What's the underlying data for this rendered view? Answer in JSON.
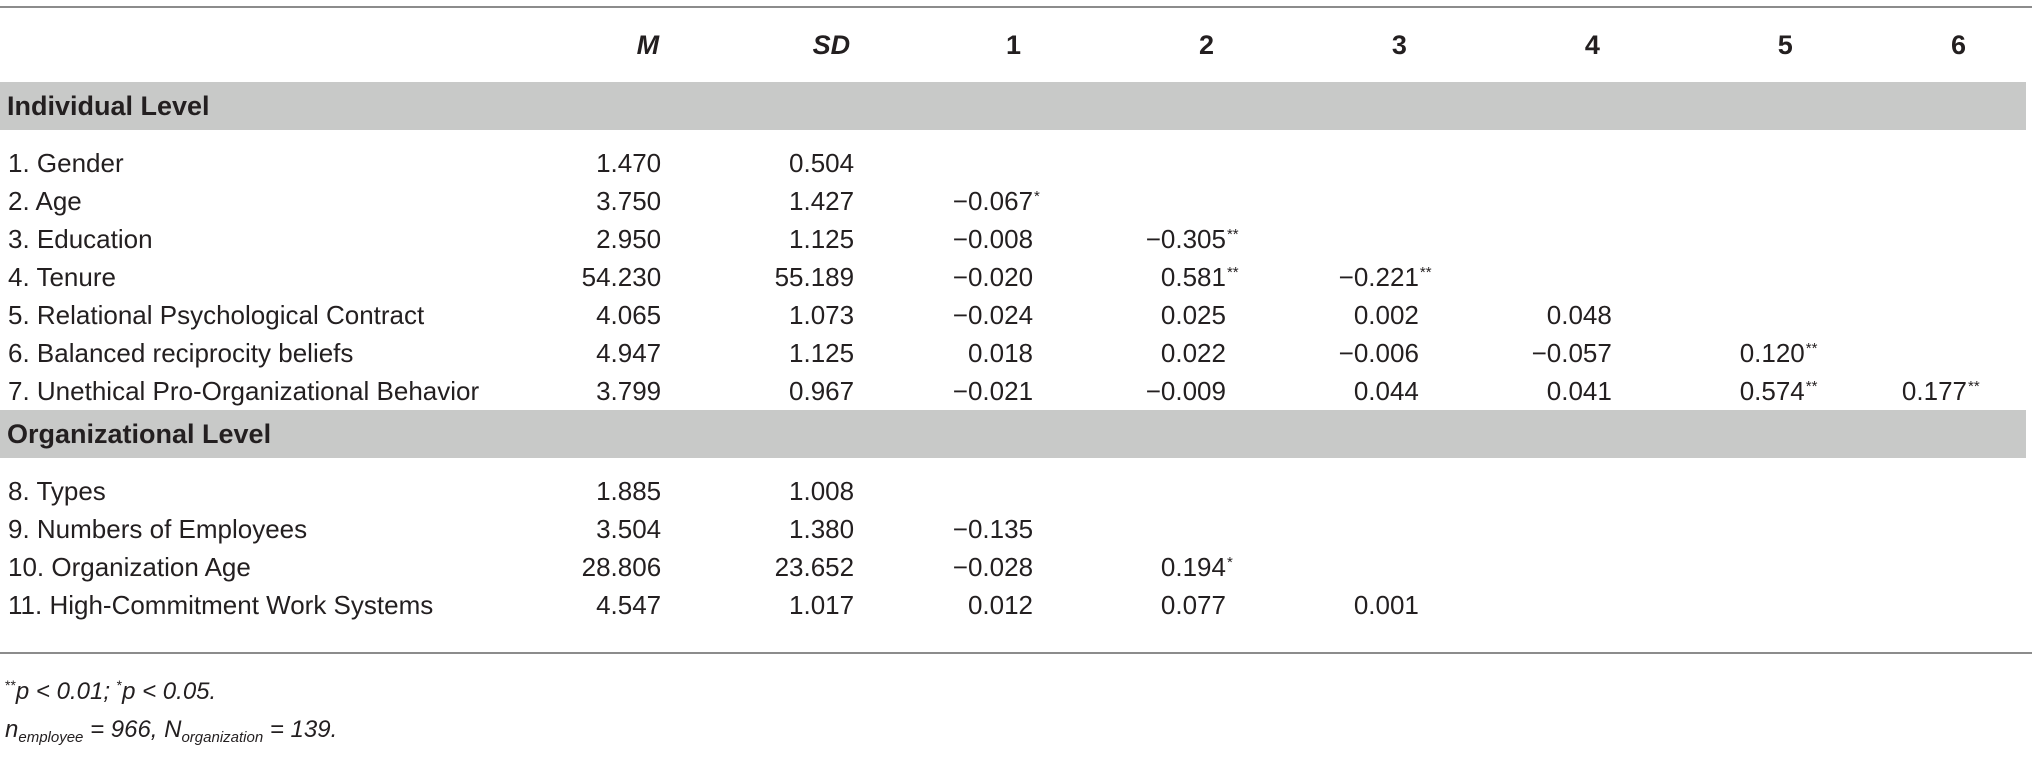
{
  "table": {
    "headers": [
      "",
      "M",
      "SD",
      "1",
      "2",
      "3",
      "4",
      "5",
      "6"
    ],
    "sections": [
      {
        "title": "Individual Level",
        "rows": [
          {
            "label": "1. Gender",
            "m": "1.470",
            "sd": "0.504",
            "c": []
          },
          {
            "label": "2. Age",
            "m": "3.750",
            "sd": "1.427",
            "c": [
              [
                "−0.067",
                "*"
              ]
            ]
          },
          {
            "label": "3. Education",
            "m": "2.950",
            "sd": "1.125",
            "c": [
              [
                "−0.008",
                ""
              ],
              [
                "−0.305",
                "**"
              ]
            ]
          },
          {
            "label": "4. Tenure",
            "m": "54.230",
            "sd": "55.189",
            "c": [
              [
                "−0.020",
                ""
              ],
              [
                "0.581",
                "**"
              ],
              [
                "−0.221",
                "**"
              ]
            ]
          },
          {
            "label": "5. Relational Psychological Contract",
            "m": "4.065",
            "sd": "1.073",
            "c": [
              [
                "−0.024",
                ""
              ],
              [
                "0.025",
                ""
              ],
              [
                "0.002",
                ""
              ],
              [
                "0.048",
                ""
              ]
            ]
          },
          {
            "label": "6. Balanced reciprocity beliefs",
            "m": "4.947",
            "sd": "1.125",
            "c": [
              [
                "0.018",
                ""
              ],
              [
                "0.022",
                ""
              ],
              [
                "−0.006",
                ""
              ],
              [
                "−0.057",
                ""
              ],
              [
                "0.120",
                "**"
              ]
            ]
          },
          {
            "label": "7. Unethical Pro-Organizational Behavior",
            "m": "3.799",
            "sd": "0.967",
            "c": [
              [
                "−0.021",
                ""
              ],
              [
                "−0.009",
                ""
              ],
              [
                "0.044",
                ""
              ],
              [
                "0.041",
                ""
              ],
              [
                "0.574",
                "**"
              ],
              [
                "0.177",
                "**"
              ]
            ]
          }
        ]
      },
      {
        "title": "Organizational Level",
        "rows": [
          {
            "label": "8. Types",
            "m": "1.885",
            "sd": "1.008",
            "c": []
          },
          {
            "label": "9. Numbers of Employees",
            "m": "3.504",
            "sd": "1.380",
            "c": [
              [
                "−0.135",
                ""
              ]
            ]
          },
          {
            "label": "10. Organization Age",
            "m": "28.806",
            "sd": "23.652",
            "c": [
              [
                "−0.028",
                ""
              ],
              [
                "0.194",
                "*"
              ]
            ]
          },
          {
            "label": "11. High-Commitment Work Systems",
            "m": "4.547",
            "sd": "1.017",
            "c": [
              [
                "0.012",
                ""
              ],
              [
                "0.077",
                ""
              ],
              [
                "0.001",
                ""
              ]
            ]
          }
        ]
      }
    ]
  },
  "notes": {
    "line1_sup1": "**",
    "line1_a": "p < 0.01; ",
    "line1_sup2": "*",
    "line1_b": "p < 0.05.",
    "line2_n": "n",
    "line2_n_sub": "employee",
    "line2_a": " = 966, N",
    "line2_N_sub": "organization",
    "line2_b": " = 139."
  }
}
